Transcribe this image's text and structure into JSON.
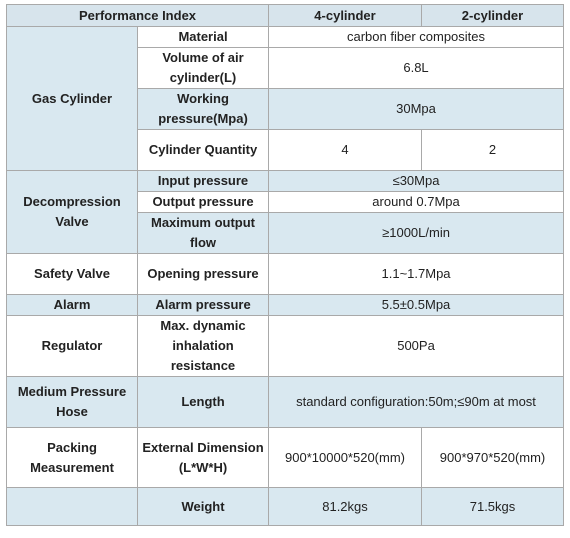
{
  "header": {
    "index": "Performance Index",
    "col1": "4-cylinder",
    "col2": "2-cylinder"
  },
  "gas_cylinder": {
    "group": "Gas Cylinder",
    "material_label": "Material",
    "material_value": "carbon fiber composites",
    "volume_label": "Volume of air cylinder(L)",
    "volume_value": "6.8L",
    "pressure_label": "Working pressure(Mpa)",
    "pressure_value": "30Mpa",
    "quantity_label": "Cylinder Quantity",
    "quantity_4": "4",
    "quantity_2": "2"
  },
  "decompression": {
    "group": "Decompression Valve",
    "input_label": "Input pressure",
    "input_value": "≤30Mpa",
    "output_label": "Output pressure",
    "output_value": "around 0.7Mpa",
    "flow_label": "Maximum output flow",
    "flow_value": "≥1000L/min"
  },
  "safety": {
    "group": "Safety Valve",
    "label": "Opening pressure",
    "value": "1.1~1.7Mpa"
  },
  "alarm": {
    "group": "Alarm",
    "label": "Alarm pressure",
    "value": "5.5±0.5Mpa"
  },
  "regulator": {
    "group": "Regulator",
    "label": "Max. dynamic inhalation resistance",
    "value": "500Pa"
  },
  "hose": {
    "group": "Medium Pressure Hose",
    "label": "Length",
    "value": "standard configuration:50m;≤90m at most"
  },
  "packing": {
    "group": "Packing Measurement",
    "dim_label": "External Dimension (L*W*H)",
    "dim_4": "900*10000*520(mm)",
    "dim_2": "900*970*520(mm)",
    "weight_label": "Weight",
    "weight_4": "81.2kgs",
    "weight_2": "71.5kgs"
  }
}
